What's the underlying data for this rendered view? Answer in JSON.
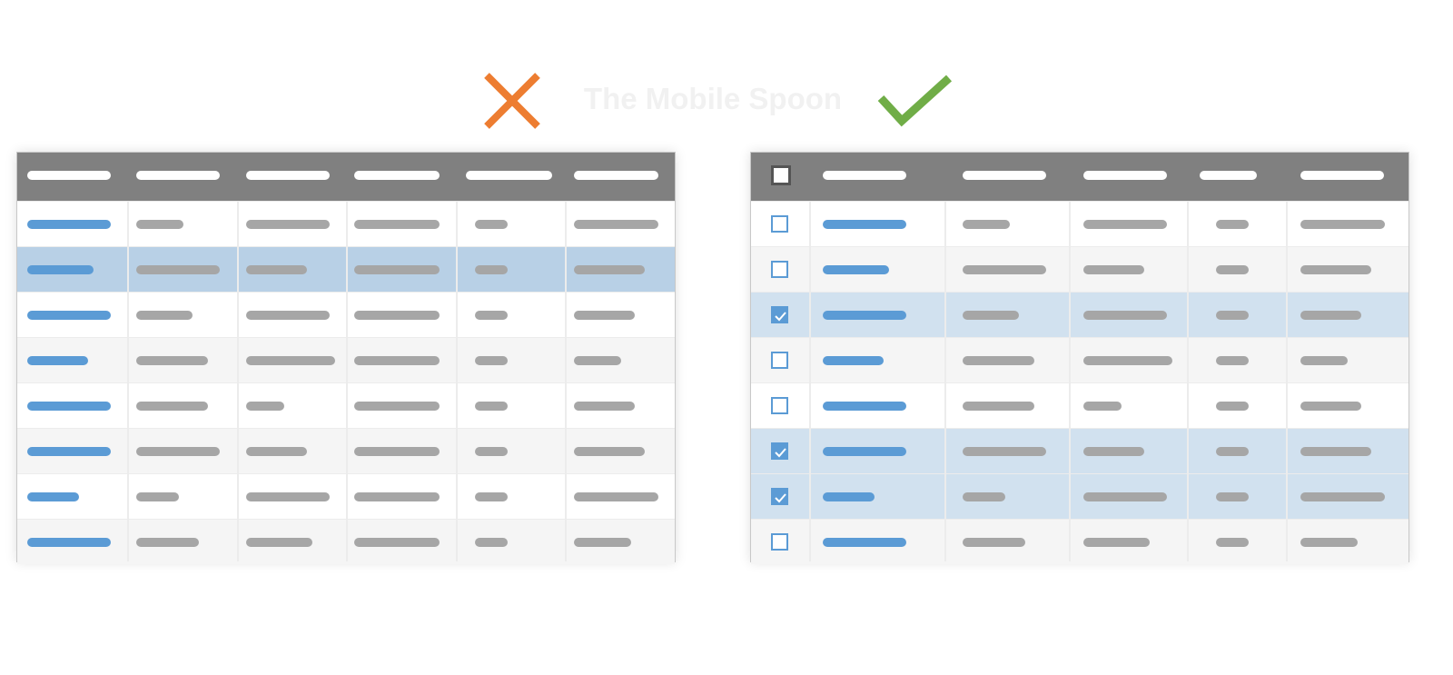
{
  "header": {
    "brand_watermark": "The Mobile Spoon",
    "bad_icon": "x-icon",
    "good_icon": "checkmark-icon",
    "colors": {
      "bad": "#ed7d31",
      "good": "#70ad47",
      "accent": "#5b9bd5",
      "header": "#808080"
    }
  },
  "left_table": {
    "label": "bad example",
    "columns": 6,
    "rows": 8,
    "highlighted_row": 1
  },
  "right_table": {
    "label": "good example",
    "columns": 5,
    "has_checkbox_column": true,
    "select_all_checked": false,
    "rows_checked": [
      false,
      false,
      true,
      false,
      false,
      true,
      true,
      false
    ]
  }
}
